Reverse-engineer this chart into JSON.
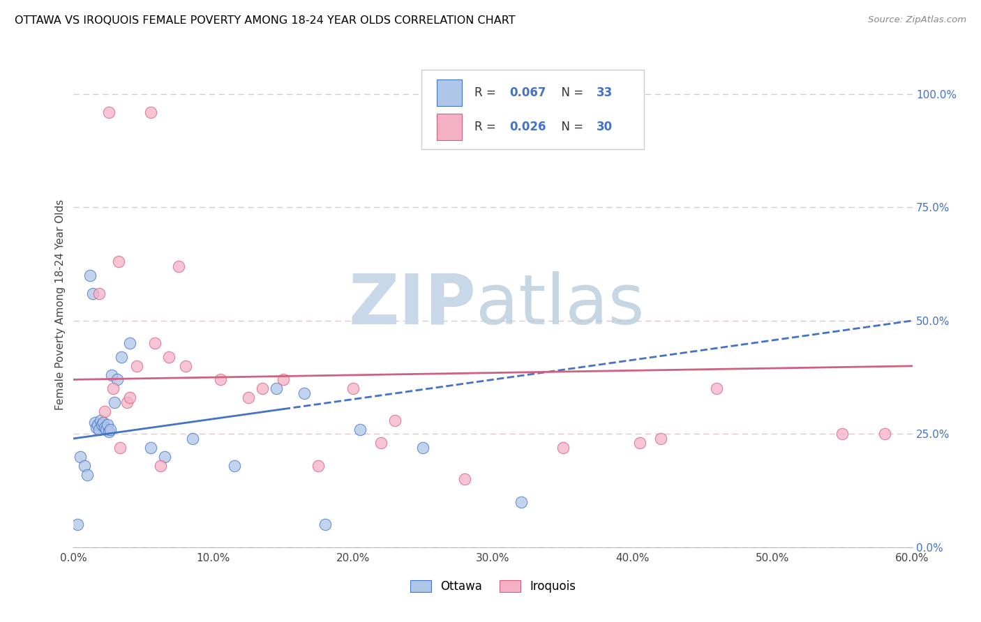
{
  "title": "OTTAWA VS IROQUOIS FEMALE POVERTY AMONG 18-24 YEAR OLDS CORRELATION CHART",
  "source": "Source: ZipAtlas.com",
  "ylabel": "Female Poverty Among 18-24 Year Olds",
  "xlim": [
    0.0,
    60.0
  ],
  "ylim": [
    0.0,
    107.0
  ],
  "x_ticks": [
    0.0,
    10.0,
    20.0,
    30.0,
    40.0,
    50.0,
    60.0
  ],
  "y_ticks_right": [
    0.0,
    25.0,
    50.0,
    75.0,
    100.0
  ],
  "ottawa_fill": "#aec6e8",
  "ottawa_edge": "#4472C4",
  "iroquois_fill": "#f4b0c4",
  "iroquois_edge": "#d06080",
  "ottawa_trend_color": "#4472C4",
  "iroquois_trend_color": "#d06080",
  "grid_color": "#d8c8d0",
  "ottawa_r": "0.067",
  "ottawa_n": "33",
  "iroquois_r": "0.026",
  "iroquois_n": "30",
  "ottawa_trend_y0": 24.0,
  "ottawa_trend_y1": 50.0,
  "ottawa_solid_x1": 15.0,
  "iroquois_trend_y0": 37.0,
  "iroquois_trend_y1": 40.0,
  "ottawa_x": [
    0.3,
    0.5,
    0.8,
    1.0,
    1.2,
    1.4,
    1.5,
    1.6,
    1.7,
    1.8,
    1.9,
    2.0,
    2.1,
    2.2,
    2.3,
    2.4,
    2.5,
    2.6,
    2.7,
    2.9,
    3.1,
    3.4,
    4.0,
    5.5,
    6.5,
    8.5,
    11.5,
    14.5,
    16.5,
    18.0,
    20.5,
    25.0,
    32.0
  ],
  "ottawa_y": [
    5.0,
    20.0,
    18.0,
    16.0,
    60.0,
    56.0,
    27.5,
    26.5,
    27.0,
    26.0,
    28.0,
    27.0,
    27.5,
    26.5,
    26.0,
    27.0,
    25.5,
    26.0,
    38.0,
    32.0,
    37.0,
    42.0,
    45.0,
    22.0,
    20.0,
    24.0,
    18.0,
    35.0,
    34.0,
    5.0,
    26.0,
    22.0,
    10.0
  ],
  "iroquois_x": [
    2.5,
    5.5,
    1.8,
    3.2,
    4.5,
    5.8,
    2.8,
    6.8,
    3.8,
    2.2,
    4.0,
    8.0,
    10.5,
    13.5,
    15.0,
    17.5,
    20.0,
    22.0,
    12.5,
    28.0,
    35.0,
    40.5,
    46.0,
    55.0,
    58.0,
    42.0,
    23.0,
    6.2,
    3.3,
    7.5
  ],
  "iroquois_y": [
    96.0,
    96.0,
    56.0,
    63.0,
    40.0,
    45.0,
    35.0,
    42.0,
    32.0,
    30.0,
    33.0,
    40.0,
    37.0,
    35.0,
    37.0,
    18.0,
    35.0,
    23.0,
    33.0,
    15.0,
    22.0,
    23.0,
    35.0,
    25.0,
    25.0,
    24.0,
    28.0,
    18.0,
    22.0,
    62.0
  ]
}
